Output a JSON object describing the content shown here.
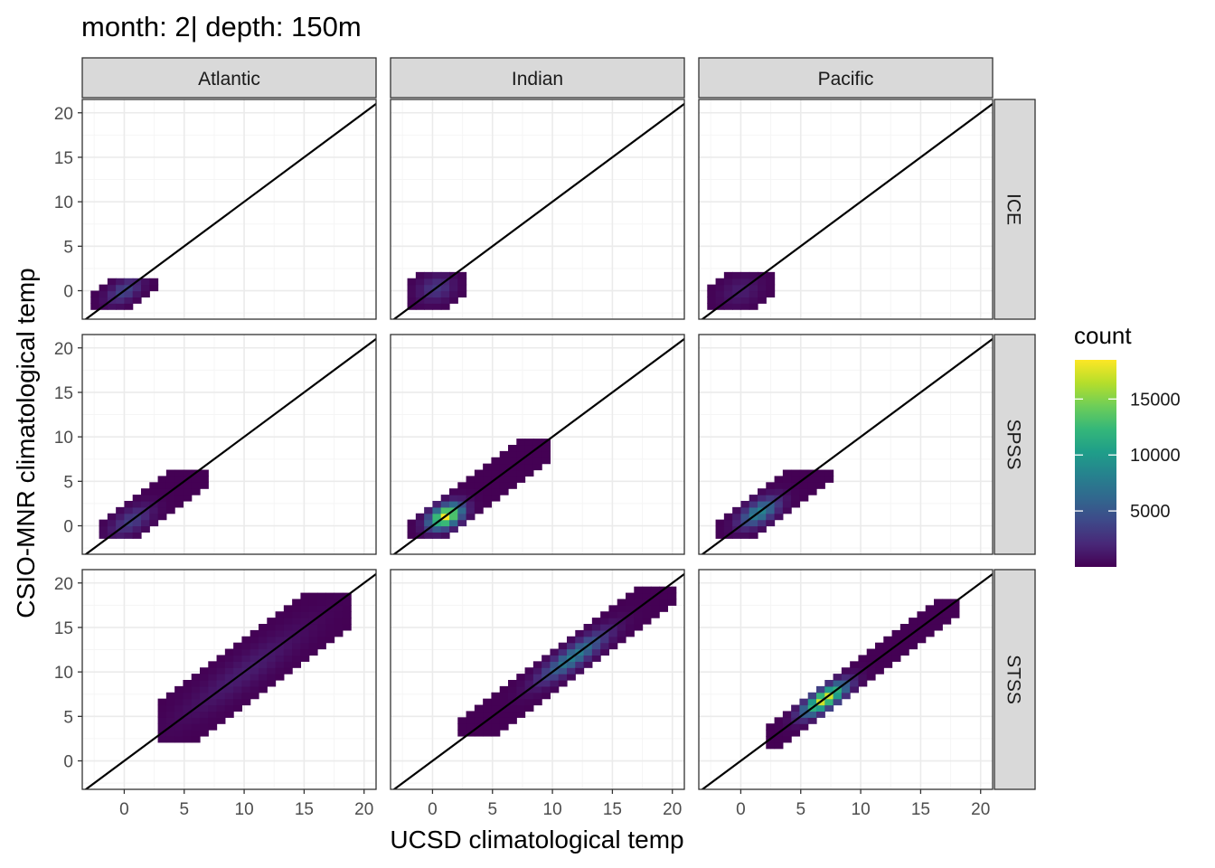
{
  "title": "month: 2| depth: 150m",
  "xlabel": "UCSD climatological temp",
  "ylabel": "CSIO-MNR climatological temp",
  "legend": {
    "title": "count",
    "ticks": [
      "5000",
      "10000",
      "15000"
    ],
    "tick_values": [
      5000,
      10000,
      15000
    ],
    "range": [
      0,
      18500
    ],
    "placement": "right",
    "colormap": [
      "#440154",
      "#482878",
      "#3e4989",
      "#31688e",
      "#26828e",
      "#1f9e89",
      "#35b779",
      "#6ece58",
      "#b5de2b",
      "#fde725"
    ]
  },
  "colors": {
    "strip_bg": "#d9d9d9",
    "panel_border": "#333333",
    "grid_major": "#ebebeb",
    "grid_minor": "#f5f5f5",
    "identity_line": "#000000"
  },
  "chart_data": {
    "type": "heatmap",
    "facet_cols": [
      "Atlantic",
      "Indian",
      "Pacific"
    ],
    "facet_rows": [
      "ICE",
      "SPSS",
      "STSS"
    ],
    "xlim": [
      -3.5,
      21
    ],
    "ylim": [
      -3.2,
      21.5
    ],
    "x_ticks": [
      0,
      5,
      10,
      15,
      20
    ],
    "y_ticks": [
      0,
      5,
      10,
      15,
      20
    ],
    "x_tick_labels": [
      "0",
      "5",
      "10",
      "15",
      "20"
    ],
    "y_tick_labels": [
      "0",
      "5",
      "10",
      "15",
      "20"
    ],
    "bin_width": 0.7,
    "grid": true,
    "reference_line": "y = x",
    "panels": [
      {
        "col": "Atlantic",
        "row": "ICE",
        "x_range": [
          -2.8,
          2.2
        ],
        "y_range": [
          -1.8,
          1.2
        ],
        "center": [
          0,
          0
        ],
        "peak": 4000,
        "cluster_width": 1.6,
        "along_sigma": 1.2
      },
      {
        "col": "Indian",
        "row": "ICE",
        "x_range": [
          -1.5,
          2.2
        ],
        "y_range": [
          -1.5,
          2.0
        ],
        "center": [
          0.3,
          0.3
        ],
        "peak": 3000,
        "cluster_width": 2.2,
        "along_sigma": 1.1
      },
      {
        "col": "Pacific",
        "row": "ICE",
        "x_range": [
          -2.2,
          2.2
        ],
        "y_range": [
          -1.5,
          2.0
        ],
        "center": [
          0,
          0
        ],
        "peak": 1500,
        "cluster_width": 2.4,
        "along_sigma": 1.3
      },
      {
        "col": "Atlantic",
        "row": "SPSS",
        "x_range": [
          -1.5,
          6.8
        ],
        "y_range": [
          -0.8,
          6.0
        ],
        "center": [
          0.6,
          0.6
        ],
        "peak": 3500,
        "cluster_width": 1.8,
        "along_sigma": 1.5
      },
      {
        "col": "Indian",
        "row": "SPSS",
        "x_range": [
          -1.5,
          9.5
        ],
        "y_range": [
          -0.8,
          9.5
        ],
        "center": [
          1.2,
          1.0
        ],
        "peak": 18500,
        "cluster_width": 1.7,
        "along_sigma": 1.1
      },
      {
        "col": "Pacific",
        "row": "SPSS",
        "x_range": [
          -1.5,
          7.2
        ],
        "y_range": [
          -0.8,
          6.2
        ],
        "center": [
          1.6,
          1.5
        ],
        "peak": 8500,
        "cluster_width": 1.7,
        "along_sigma": 1.4
      },
      {
        "col": "Atlantic",
        "row": "STSS",
        "x_range": [
          3.0,
          18.3
        ],
        "y_range": [
          2.5,
          18.5
        ],
        "center": [
          10.0,
          10.0
        ],
        "peak": 1500,
        "cluster_width": 2.5,
        "along_sigma": 5.0
      },
      {
        "col": "Indian",
        "row": "STSS",
        "x_range": [
          2.2,
          19.8
        ],
        "y_range": [
          3.0,
          19.0
        ],
        "center": [
          12.0,
          11.5
        ],
        "peak": 8000,
        "cluster_width": 1.6,
        "along_sigma": 2.6
      },
      {
        "col": "Pacific",
        "row": "STSS",
        "x_range": [
          2.2,
          17.5
        ],
        "y_range": [
          1.5,
          18.0
        ],
        "center": [
          7.0,
          7.0
        ],
        "peak": 18000,
        "cluster_width": 1.4,
        "along_sigma": 1.6
      }
    ]
  }
}
